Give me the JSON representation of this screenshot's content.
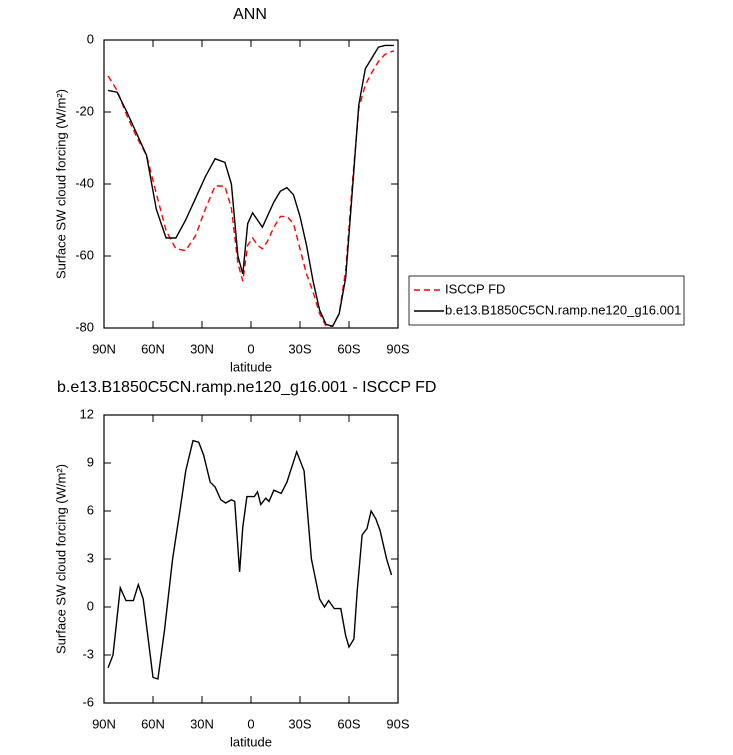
{
  "chart_data": [
    {
      "type": "line",
      "title": "ANN",
      "xlabel": "latitude",
      "ylabel": "Surface SW cloud forcing (W/m²)",
      "x": [
        87.5,
        82,
        76,
        70,
        64,
        58,
        52,
        46,
        40,
        34,
        28,
        22,
        16,
        12,
        8,
        5,
        2,
        -1,
        -4,
        -7,
        -10,
        -14,
        -18,
        -22,
        -26,
        -30,
        -34,
        -38,
        -42,
        -46,
        -50,
        -54,
        -58,
        -62,
        -66,
        -70,
        -74,
        -78,
        -82,
        -87.5
      ],
      "series": [
        {
          "name": "ISCCP FD",
          "color": "#ff0000",
          "dashed": true,
          "values": [
            -10,
            -14,
            -21,
            -27,
            -32,
            -42.6,
            -53,
            -58,
            -58.5,
            -54.4,
            -47,
            -40.5,
            -40.6,
            -46.7,
            -62,
            -67,
            -57,
            -55,
            -57,
            -58,
            -56,
            -52,
            -49,
            -49,
            -51,
            -58,
            -65,
            -70,
            -76,
            -79.5,
            -79.5,
            -76,
            -64,
            -40,
            -19,
            -12.5,
            -9,
            -6,
            -4,
            -3
          ]
        },
        {
          "name": "b.e13.B1850C5CN.ramp.ne120_g16.001",
          "color": "#000000",
          "dashed": false,
          "values": [
            -14,
            -14.5,
            -20,
            -26,
            -32,
            -47,
            -55,
            -55,
            -50,
            -44,
            -38,
            -33,
            -34,
            -40,
            -60,
            -65,
            -51,
            -48,
            -50,
            -52,
            -49,
            -45,
            -42,
            -41,
            -43,
            -49,
            -57,
            -67,
            -75,
            -79,
            -79.5,
            -76,
            -66,
            -42,
            -18,
            -8,
            -5,
            -2,
            -1.5,
            -1.5
          ]
        }
      ],
      "xlim": [
        90,
        -90
      ],
      "xticks": [
        {
          "value": 90,
          "label": "90N"
        },
        {
          "value": 60,
          "label": "60N"
        },
        {
          "value": 30,
          "label": "30N"
        },
        0,
        {
          "value": -30,
          "label": "30S"
        },
        {
          "value": -60,
          "label": "60S"
        },
        {
          "value": -90,
          "label": "90S"
        }
      ],
      "ylim": [
        -80,
        0
      ],
      "yticks": [
        -80,
        -60,
        -40,
        -20,
        0
      ],
      "legend": "right"
    },
    {
      "type": "line",
      "title": "b.e13.B1850C5CN.ramp.ne120_g16.001 - ISCCP FD",
      "xlabel": "latitude",
      "ylabel": "Surface SW cloud forcing (W/m²)",
      "x": [
        87.5,
        84.5,
        80,
        76.5,
        72,
        69,
        66,
        60,
        57,
        53,
        48,
        43.5,
        40,
        35.5,
        32,
        29,
        25,
        22,
        18.5,
        15.5,
        12,
        10,
        7,
        5,
        2.5,
        -2,
        -4,
        -6,
        -9,
        -11,
        -14,
        -18.5,
        -22,
        -28,
        -32.5,
        -37,
        -42,
        -45,
        -47.5,
        -51,
        -55,
        -58,
        -60,
        -63,
        -65,
        -68,
        -71,
        -73.5,
        -76.5,
        -79,
        -83,
        -86
      ],
      "values": [
        -3.8,
        -3,
        1.2,
        0.4,
        0.4,
        1.4,
        0.5,
        -4.4,
        -4.5,
        -1.5,
        3,
        6,
        8.5,
        10.4,
        10.3,
        9.5,
        7.8,
        7.5,
        6.7,
        6.5,
        6.7,
        6.6,
        2.2,
        5,
        6.9,
        6.9,
        7.2,
        6.4,
        6.8,
        6.6,
        7.3,
        7.1,
        7.8,
        9.7,
        8.5,
        3,
        0.5,
        0,
        0.4,
        -0.1,
        -0.1,
        -1.8,
        -2.5,
        -2,
        1,
        4.5,
        4.9,
        6,
        5.5,
        4.8,
        3,
        2
      ],
      "color": "#000000",
      "xlim": [
        90,
        -90
      ],
      "xticks": [
        {
          "value": 90,
          "label": "90N"
        },
        {
          "value": 60,
          "label": "60N"
        },
        {
          "value": 30,
          "label": "30N"
        },
        0,
        {
          "value": -30,
          "label": "30S"
        },
        {
          "value": -60,
          "label": "60S"
        },
        {
          "value": -90,
          "label": "90S"
        }
      ],
      "ylim": [
        -6,
        12
      ],
      "yticks": [
        -6,
        -3,
        0,
        3,
        6,
        9,
        12
      ]
    }
  ]
}
